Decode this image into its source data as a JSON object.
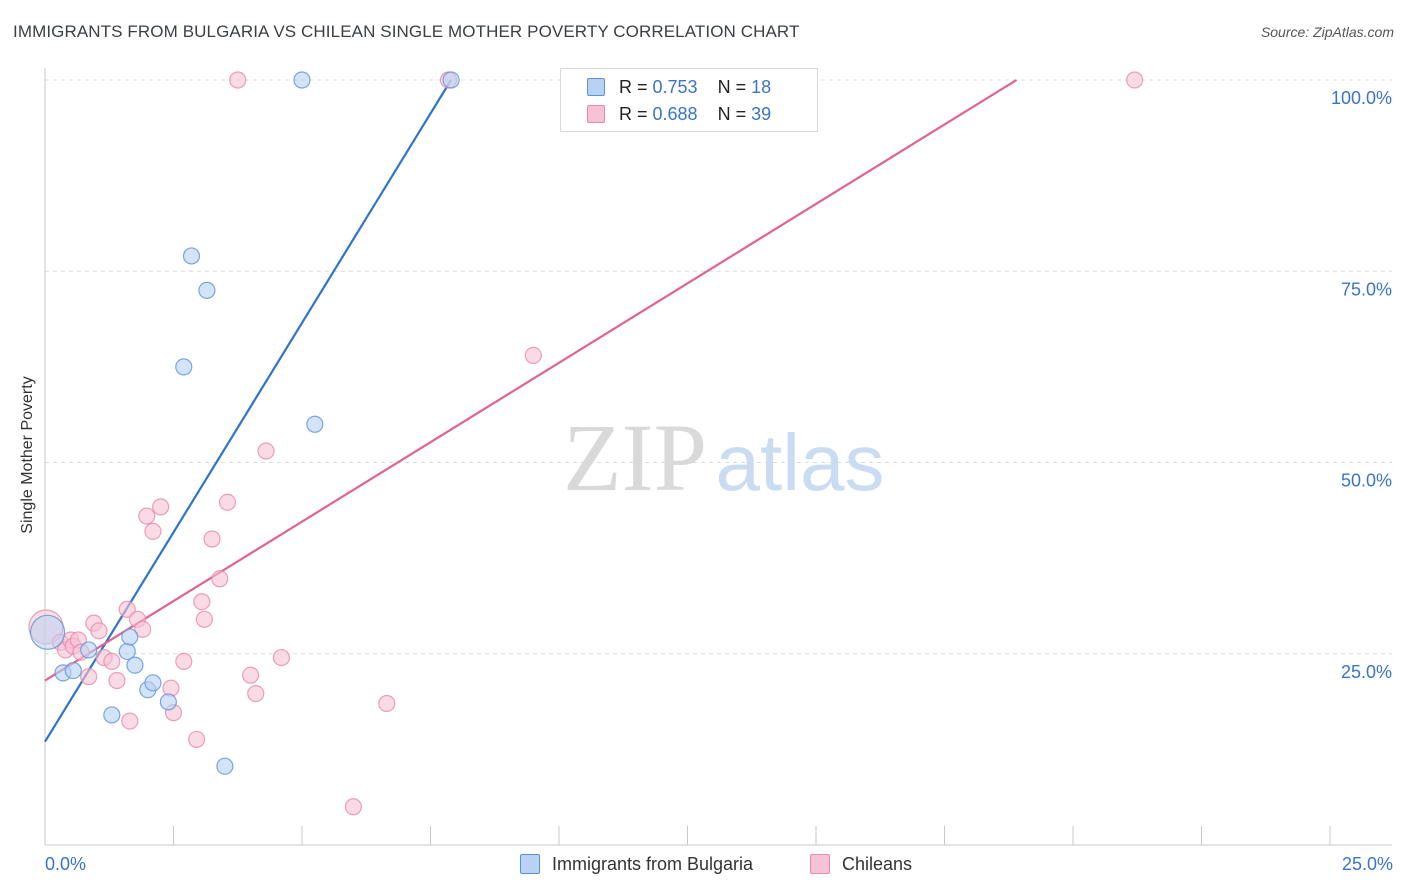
{
  "header": {
    "title": "IMMIGRANTS FROM BULGARIA VS CHILEAN SINGLE MOTHER POVERTY CORRELATION CHART",
    "source": "Source: ZipAtlas.com"
  },
  "watermark": {
    "zip": "ZIP",
    "atlas": "atlas"
  },
  "legend": {
    "r_label": "R = ",
    "n_label": "N = ",
    "series": [
      {
        "name": "Immigrants from Bulgaria",
        "r": "0.753",
        "n": "18"
      },
      {
        "name": "Chileans",
        "r": "0.688",
        "n": "39"
      }
    ]
  },
  "colors": {
    "blue_fill": "#b8d2f3",
    "blue_stroke": "#5b92d8",
    "blue_line": "#2f74cc",
    "pink_fill": "#f7c2d3",
    "pink_stroke": "#e68aa8",
    "pink_line": "#e0648f",
    "axis_text": "#3a74c9"
  },
  "chart_data": {
    "type": "scatter",
    "title": "IMMIGRANTS FROM BULGARIA VS CHILEAN SINGLE MOTHER POVERTY CORRELATION CHART",
    "xlabel": "",
    "ylabel": "Single Mother Poverty",
    "xlim": [
      0,
      25
    ],
    "ylim": [
      0,
      100
    ],
    "x_tick_labels": [
      "0.0%",
      "25.0%"
    ],
    "y_ticks": [
      25,
      50,
      75,
      100
    ],
    "y_tick_labels": [
      "25.0%",
      "50.0%",
      "75.0%",
      "100.0%"
    ],
    "grid": true,
    "series": [
      {
        "name": "Immigrants from Bulgaria",
        "color": "blue",
        "trend": {
          "x": [
            0,
            7.9
          ],
          "y": [
            13.5,
            100
          ]
        },
        "points": [
          {
            "x": 0.05,
            "y": 27.8,
            "big": true
          },
          {
            "x": 0.35,
            "y": 22.5
          },
          {
            "x": 0.55,
            "y": 22.8
          },
          {
            "x": 0.85,
            "y": 25.5
          },
          {
            "x": 1.3,
            "y": 17.0
          },
          {
            "x": 1.6,
            "y": 25.3
          },
          {
            "x": 1.65,
            "y": 27.2
          },
          {
            "x": 1.75,
            "y": 23.5
          },
          {
            "x": 2.0,
            "y": 20.3
          },
          {
            "x": 2.1,
            "y": 21.2
          },
          {
            "x": 2.4,
            "y": 18.7
          },
          {
            "x": 2.7,
            "y": 62.5
          },
          {
            "x": 2.85,
            "y": 77.0
          },
          {
            "x": 3.15,
            "y": 72.5
          },
          {
            "x": 3.5,
            "y": 10.3
          },
          {
            "x": 5.0,
            "y": 100.0
          },
          {
            "x": 5.25,
            "y": 55.0
          },
          {
            "x": 7.9,
            "y": 100.0
          }
        ]
      },
      {
        "name": "Chileans",
        "color": "pink",
        "trend": {
          "x": [
            0,
            18.9
          ],
          "y": [
            21.5,
            100
          ]
        },
        "points": [
          {
            "x": 0.02,
            "y": 28.5,
            "big": true
          },
          {
            "x": 0.3,
            "y": 26.5
          },
          {
            "x": 0.4,
            "y": 25.5
          },
          {
            "x": 0.5,
            "y": 26.8
          },
          {
            "x": 0.55,
            "y": 26.0
          },
          {
            "x": 0.65,
            "y": 26.8
          },
          {
            "x": 0.7,
            "y": 25.2
          },
          {
            "x": 0.85,
            "y": 22.0
          },
          {
            "x": 0.95,
            "y": 29.0
          },
          {
            "x": 1.05,
            "y": 28.0
          },
          {
            "x": 1.15,
            "y": 24.5
          },
          {
            "x": 1.3,
            "y": 24.0
          },
          {
            "x": 1.4,
            "y": 21.5
          },
          {
            "x": 1.6,
            "y": 30.8
          },
          {
            "x": 1.65,
            "y": 16.2
          },
          {
            "x": 1.8,
            "y": 29.5
          },
          {
            "x": 1.9,
            "y": 28.2
          },
          {
            "x": 1.98,
            "y": 43.0
          },
          {
            "x": 2.1,
            "y": 41.0
          },
          {
            "x": 2.25,
            "y": 44.2
          },
          {
            "x": 2.45,
            "y": 20.5
          },
          {
            "x": 2.5,
            "y": 17.3
          },
          {
            "x": 2.7,
            "y": 24.0
          },
          {
            "x": 2.95,
            "y": 13.8
          },
          {
            "x": 3.05,
            "y": 31.8
          },
          {
            "x": 3.1,
            "y": 29.5
          },
          {
            "x": 3.25,
            "y": 40.0
          },
          {
            "x": 3.4,
            "y": 34.8
          },
          {
            "x": 3.55,
            "y": 44.8
          },
          {
            "x": 3.75,
            "y": 100.0
          },
          {
            "x": 4.0,
            "y": 22.2
          },
          {
            "x": 4.1,
            "y": 19.8
          },
          {
            "x": 4.3,
            "y": 51.5
          },
          {
            "x": 4.6,
            "y": 24.5
          },
          {
            "x": 6.0,
            "y": 5.0
          },
          {
            "x": 6.65,
            "y": 18.5
          },
          {
            "x": 7.85,
            "y": 100.0
          },
          {
            "x": 9.5,
            "y": 64.0
          },
          {
            "x": 21.2,
            "y": 100.0
          }
        ]
      }
    ]
  }
}
